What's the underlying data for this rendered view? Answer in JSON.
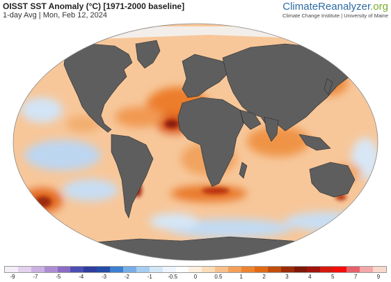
{
  "header": {
    "title": "OISST SST Anomaly (°C) [1971-2000 baseline]",
    "subtitle": "1-day Avg | Mon, Feb 12, 2024"
  },
  "brand": {
    "name_main": "ClimateReanalyzer",
    "name_tld": ".org",
    "institution": "Climate Change Institute | University of Maine"
  },
  "colors": {
    "ocean_warm": "#f6b277",
    "ocean_hot": "#e8701d",
    "ocean_extreme": "#a82010",
    "ocean_cool": "#c5dcf2",
    "ocean_neutral": "#fbe6d2",
    "land": "#5e5e5e",
    "ice": "#f0f0f0"
  },
  "legend": {
    "ticks": [
      "-9",
      "-7",
      "-5",
      "-4",
      "-3",
      "-2",
      "-1",
      "-0.5",
      "0",
      "0.5",
      "1",
      "2",
      "3",
      "4",
      "5",
      "7",
      "9"
    ],
    "swatches": [
      "#f4eef8",
      "#e3d2ee",
      "#cbb0e2",
      "#ad8cd4",
      "#8b6cc4",
      "#4b4fb4",
      "#2f3d9e",
      "#234ba8",
      "#3d7fd0",
      "#77aee6",
      "#a7cdf0",
      "#d2e6f8",
      "#eef5fc",
      "#ffffff",
      "#fdf0e0",
      "#fbdcb8",
      "#f8c08a",
      "#f4a05a",
      "#ee8430",
      "#e06a14",
      "#c24e0c",
      "#9c2c08",
      "#7e1804",
      "#a0140c",
      "#d41a0e",
      "#f40e0a",
      "#e8606a",
      "#f2a8a8",
      "#f8d8cc"
    ]
  }
}
